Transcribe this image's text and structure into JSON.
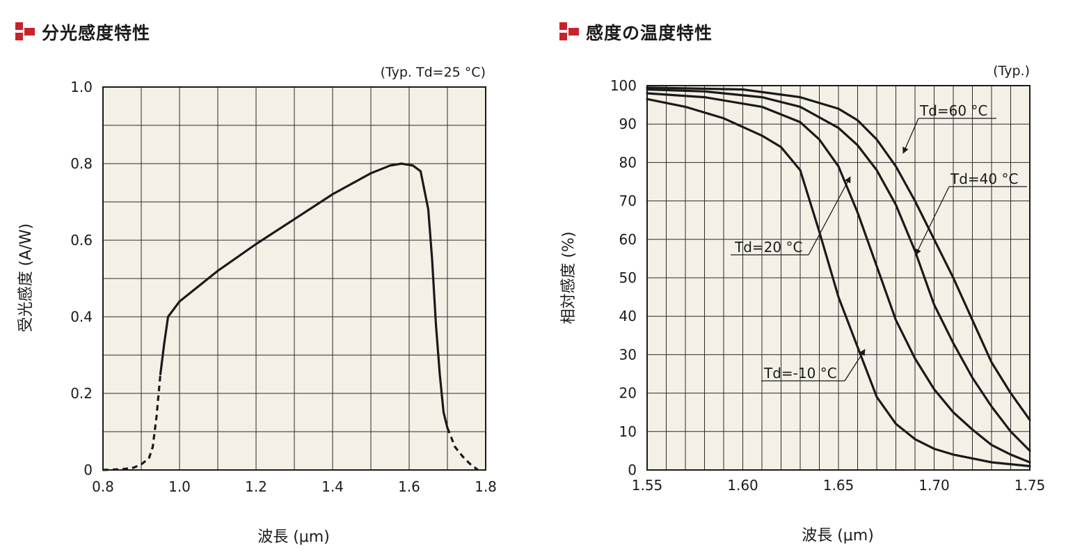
{
  "charts": [
    {
      "heading": "分光感度特性",
      "note": "(Typ. Td=25 °C)",
      "xlabel": "波長 (μm)",
      "ylabel": "受光感度 (A/W)",
      "xticks": [
        "0.8",
        "1.0",
        "1.2",
        "1.4",
        "1.6",
        "1.8"
      ],
      "yticks": [
        "0",
        "0.2",
        "0.4",
        "0.6",
        "0.8",
        "1.0"
      ]
    },
    {
      "heading": "感度の温度特性",
      "note": "(Typ.)",
      "xlabel": "波長 (μm)",
      "ylabel": "相対感度 (%)",
      "xticks": [
        "1.55",
        "1.60",
        "1.65",
        "1.70",
        "1.75"
      ],
      "yticks": [
        "0",
        "10",
        "20",
        "30",
        "40",
        "50",
        "60",
        "70",
        "80",
        "90",
        "100"
      ]
    }
  ],
  "colors": {
    "plot_bg": "#f4f0e6",
    "line": "#1a1a1a",
    "grid": "#2a2a2a",
    "accent": "#c8232c"
  },
  "chart_data": [
    {
      "type": "line",
      "title": "分光感度特性",
      "xlabel": "波長 (μm)",
      "ylabel": "受光感度 (A/W)",
      "xlim": [
        0.8,
        1.8
      ],
      "ylim": [
        0,
        1.0
      ],
      "grid": true,
      "series": [
        {
          "style": "solid",
          "x": [
            0.95,
            0.96,
            0.97,
            1.0,
            1.1,
            1.2,
            1.3,
            1.4,
            1.5,
            1.55,
            1.58,
            1.61,
            1.63,
            1.65,
            1.66,
            1.67,
            1.68,
            1.69,
            1.7
          ],
          "y": [
            0.25,
            0.33,
            0.4,
            0.44,
            0.52,
            0.59,
            0.655,
            0.72,
            0.775,
            0.795,
            0.8,
            0.795,
            0.78,
            0.68,
            0.55,
            0.38,
            0.25,
            0.15,
            0.11
          ]
        },
        {
          "style": "dashed",
          "x": [
            0.8,
            0.85,
            0.88,
            0.9,
            0.92,
            0.93,
            0.94,
            0.95
          ],
          "y": [
            0.0,
            0.002,
            0.006,
            0.015,
            0.03,
            0.06,
            0.14,
            0.25
          ]
        },
        {
          "style": "dashed",
          "x": [
            1.7,
            1.71,
            1.72,
            1.74,
            1.76,
            1.78
          ],
          "y": [
            0.11,
            0.085,
            0.06,
            0.035,
            0.015,
            0.0
          ]
        }
      ]
    },
    {
      "type": "line",
      "title": "感度の温度特性",
      "xlabel": "波長 (μm)",
      "ylabel": "相対感度 (%)",
      "xlim": [
        1.55,
        1.75
      ],
      "ylim": [
        0,
        100
      ],
      "grid": true,
      "series": [
        {
          "name": "Td=-10 °C",
          "x": [
            1.55,
            1.57,
            1.59,
            1.61,
            1.62,
            1.63,
            1.64,
            1.65,
            1.66,
            1.67,
            1.68,
            1.69,
            1.7,
            1.71,
            1.72,
            1.73,
            1.75
          ],
          "y": [
            96.5,
            94.5,
            91.5,
            87,
            84,
            78,
            62,
            45,
            32,
            19,
            12,
            8,
            5.5,
            4,
            3,
            2,
            1
          ]
        },
        {
          "name": "Td=20 °C",
          "x": [
            1.55,
            1.58,
            1.61,
            1.63,
            1.64,
            1.65,
            1.66,
            1.67,
            1.68,
            1.69,
            1.7,
            1.71,
            1.72,
            1.73,
            1.74,
            1.75
          ],
          "y": [
            98,
            97,
            94.5,
            90.5,
            86,
            79,
            67,
            53,
            39,
            29,
            21,
            15,
            10.5,
            6.5,
            4,
            2
          ]
        },
        {
          "name": "Td=40 °C",
          "x": [
            1.55,
            1.58,
            1.61,
            1.63,
            1.65,
            1.66,
            1.67,
            1.68,
            1.69,
            1.7,
            1.71,
            1.72,
            1.73,
            1.74,
            1.75
          ],
          "y": [
            99,
            98.5,
            97,
            94.5,
            89,
            84.5,
            78,
            69,
            57,
            43,
            33,
            24,
            16.5,
            10,
            5
          ]
        },
        {
          "name": "Td=60 °C",
          "x": [
            1.55,
            1.6,
            1.63,
            1.65,
            1.66,
            1.67,
            1.68,
            1.69,
            1.7,
            1.71,
            1.72,
            1.73,
            1.74,
            1.75
          ],
          "y": [
            99.5,
            99,
            97,
            94,
            91,
            86,
            79,
            70,
            60,
            50,
            39,
            28,
            20,
            13
          ]
        }
      ],
      "annotations": [
        "Td=60 °C",
        "Td=40 °C",
        "Td=20 °C",
        "Td=-10 °C"
      ]
    }
  ]
}
